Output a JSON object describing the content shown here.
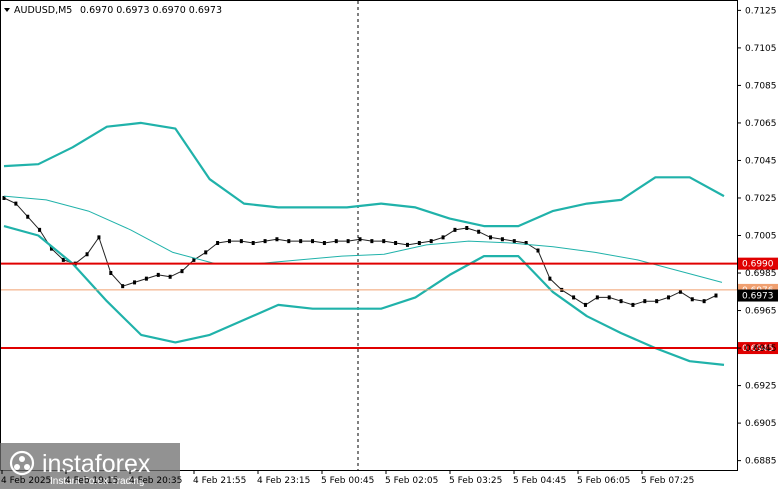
{
  "header": {
    "symbol_label": "AUDUSD,M5",
    "ohlc_label": "0.6970 0.6973 0.6970 0.6973"
  },
  "colors": {
    "band": "#20b2aa",
    "ma": "#20b2aa",
    "level_line": "#e00000",
    "price_line": "#f0a070",
    "price_tag": "#000000"
  },
  "y_axis": {
    "ticks": [
      "0.7125",
      "0.7105",
      "0.7085",
      "0.7065",
      "0.7045",
      "0.7025",
      "0.7005",
      "0.6985",
      "0.6965",
      "0.6945",
      "0.6925",
      "0.6905",
      "0.6885"
    ]
  },
  "x_axis": {
    "ticks": [
      "4 Feb 2025",
      "4 Feb 19:15",
      "4 Feb 20:35",
      "4 Feb 21:55",
      "4 Feb 23:15",
      "5 Feb 00:45",
      "5 Feb 02:05",
      "5 Feb 03:25",
      "5 Feb 04:45",
      "5 Feb 06:05",
      "5 Feb 07:25"
    ]
  },
  "levels": {
    "upper_value": "0.6990",
    "lower_value": "0.6945",
    "faint_value": "0.6976",
    "current_price": "0.6973"
  },
  "watermark": {
    "brand": "instaforex",
    "tagline": "Instant Forex Trading"
  },
  "chart_data": {
    "type": "line",
    "ylim": [
      0.688,
      0.713
    ],
    "series": [
      {
        "values": [
          0.7025,
          0.7022,
          0.7015,
          0.7008,
          0.6998,
          0.6992,
          0.699,
          0.6995,
          0.7004,
          0.6985,
          0.6978,
          0.698,
          0.6982,
          0.6984,
          0.6983,
          0.6986,
          0.6992,
          0.6996,
          0.7001,
          0.7002,
          0.7002,
          0.7001,
          0.7002,
          0.7003,
          0.7002,
          0.7002,
          0.7002,
          0.7001,
          0.7002,
          0.7002,
          0.7003,
          0.7002,
          0.7002,
          0.7001,
          0.7,
          0.7001,
          0.7002,
          0.7004,
          0.7008,
          0.7009,
          0.7007,
          0.7004,
          0.7003,
          0.7002,
          0.7001,
          0.6997,
          0.6982,
          0.6976,
          0.6972,
          0.6968,
          0.6972,
          0.6972,
          0.697,
          0.6968,
          0.697,
          0.697,
          0.6972,
          0.6975,
          0.6971,
          0.697,
          0.6973
        ]
      },
      {
        "values": [
          0.7042,
          0.7043,
          0.7052,
          0.7063,
          0.7065,
          0.7062,
          0.7035,
          0.7022,
          0.702,
          0.702,
          0.702,
          0.7022,
          0.702,
          0.7014,
          0.701,
          0.701,
          0.7018,
          0.7022,
          0.7024,
          0.7036,
          0.7036,
          0.7026
        ]
      },
      {
        "values": [
          0.701,
          0.7005,
          0.699,
          0.697,
          0.6952,
          0.6948,
          0.6952,
          0.696,
          0.6968,
          0.6966,
          0.6966,
          0.6966,
          0.6972,
          0.6984,
          0.6994,
          0.6994,
          0.6975,
          0.6962,
          0.6953,
          0.6945,
          0.6938,
          0.6936
        ]
      },
      {
        "values": [
          0.7026,
          0.7024,
          0.7018,
          0.7008,
          0.6996,
          0.699,
          0.699,
          0.6992,
          0.6994,
          0.6995,
          0.7,
          0.7002,
          0.7001,
          0.6999,
          0.6996,
          0.6992,
          0.6986,
          0.698
        ]
      }
    ]
  }
}
